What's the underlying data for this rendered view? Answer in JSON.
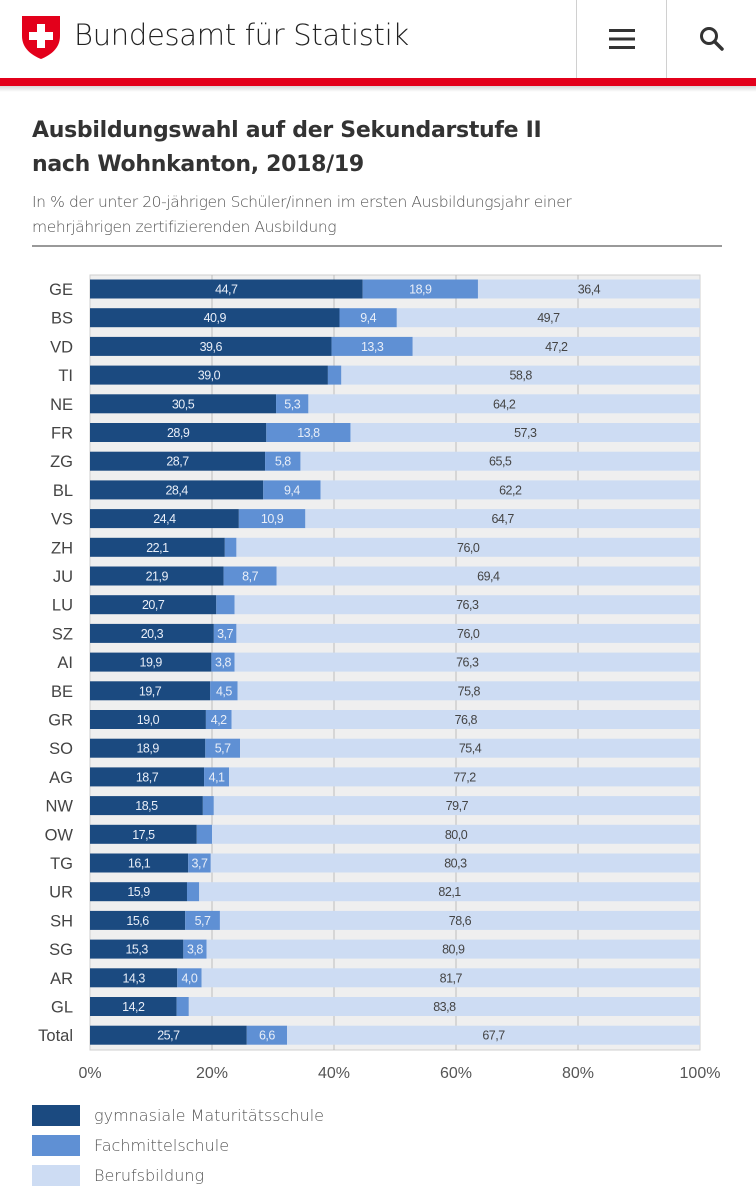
{
  "header": {
    "site_title": "Bundesamt für Statistik",
    "menu_icon": "hamburger-menu-icon",
    "search_icon": "search-icon",
    "logo": "swiss-cross-shield"
  },
  "colors": {
    "brand_red": "#e3001b",
    "gymnasium": "#1b4a80",
    "fachmittel": "#5f90d4",
    "beruf": "#cddcf3"
  },
  "chart_data": {
    "type": "bar",
    "stacked": true,
    "orientation": "horizontal",
    "title": "Ausbildungswahl auf der Sekundarstufe II nach Wohnkanton, 2018/19",
    "title_lines": [
      "Ausbildungswahl auf der Sekundarstufe II",
      "nach Wohnkanton, 2018/19"
    ],
    "subtitle_lines": [
      "In % der unter 20-jährigen Schüler/innen im ersten Ausbildungsjahr einer",
      "mehrjährigen zertifizierenden Ausbildung"
    ],
    "xlim": [
      0,
      100
    ],
    "x_ticks": [
      "0%",
      "20%",
      "40%",
      "60%",
      "80%",
      "100%"
    ],
    "grid": true,
    "legend_position": "bottom-left",
    "categories": [
      "GE",
      "BS",
      "VD",
      "TI",
      "NE",
      "FR",
      "ZG",
      "BL",
      "VS",
      "ZH",
      "JU",
      "LU",
      "SZ",
      "AI",
      "BE",
      "GR",
      "SO",
      "AG",
      "NW",
      "OW",
      "TG",
      "UR",
      "SH",
      "SG",
      "AR",
      "GL",
      "Total"
    ],
    "series": [
      {
        "name": "gymnasiale Maturitätsschule",
        "values": [
          44.7,
          40.9,
          39.6,
          39.0,
          30.5,
          28.9,
          28.7,
          28.4,
          24.4,
          22.1,
          21.9,
          20.7,
          20.3,
          19.9,
          19.7,
          19.0,
          18.9,
          18.7,
          18.5,
          17.5,
          16.1,
          15.9,
          15.6,
          15.3,
          14.3,
          14.2,
          25.7
        ],
        "labels": [
          "44,7",
          "40,9",
          "39,6",
          "39,0",
          "30,5",
          "28,9",
          "28,7",
          "28,4",
          "24,4",
          "22,1",
          "21,9",
          "20,7",
          "20,3",
          "19,9",
          "19,7",
          "19,0",
          "18,9",
          "18,7",
          "18,5",
          "17,5",
          "16,1",
          "15,9",
          "15,6",
          "15,3",
          "14,3",
          "14,2",
          "25,7"
        ]
      },
      {
        "name": "Fachmittelschule",
        "values": [
          18.9,
          9.4,
          13.3,
          2.2,
          5.3,
          13.8,
          5.8,
          9.4,
          10.9,
          1.9,
          8.7,
          3.0,
          3.7,
          3.8,
          4.5,
          4.2,
          5.7,
          4.1,
          1.8,
          2.5,
          3.7,
          2.0,
          5.7,
          3.8,
          4.0,
          2.0,
          6.6
        ],
        "labels": [
          "18,9",
          "9,4",
          "13,3",
          null,
          "5,3",
          "13,8",
          "5,8",
          "9,4",
          "10,9",
          null,
          "8,7",
          null,
          "3,7",
          "3,8",
          "4,5",
          "4,2",
          "5,7",
          "4,1",
          null,
          null,
          "3,7",
          null,
          "5,7",
          "3,8",
          "4,0",
          null,
          "6,6"
        ]
      },
      {
        "name": "Berufsbildung",
        "values": [
          36.4,
          49.7,
          47.2,
          58.8,
          64.2,
          57.3,
          65.5,
          62.2,
          64.7,
          76.0,
          69.4,
          76.3,
          76.0,
          76.3,
          75.8,
          76.8,
          75.4,
          77.2,
          79.7,
          80.0,
          80.3,
          82.1,
          78.6,
          80.9,
          81.7,
          83.8,
          67.7
        ],
        "labels": [
          "36,4",
          "49,7",
          "47,2",
          "58,8",
          "64,2",
          "57,3",
          "65,5",
          "62,2",
          "64,7",
          "76,0",
          "69,4",
          "76,3",
          "76,0",
          "76,3",
          "75,8",
          "76,8",
          "75,4",
          "77,2",
          "79,7",
          "80,0",
          "80,3",
          "82,1",
          "78,6",
          "80,9",
          "81,7",
          "83,8",
          "67,7"
        ]
      }
    ]
  }
}
